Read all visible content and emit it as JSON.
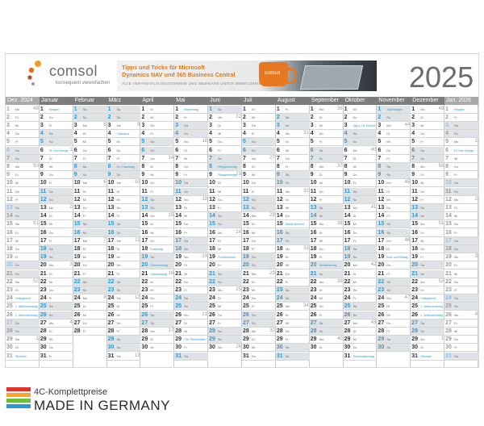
{
  "banner": {
    "logo_word": "comsol",
    "logo_tag": "konsequent vereinfachen",
    "ad_line1": "Tipps und Tricks für Microsoft",
    "ad_line2": "Dynamics NAV und 365 Business Central",
    "ad_line3": "ALLE VERANSTALTUNGSTERMINE UND WEBINARE UNTER WWW.COMSOL.AG",
    "mug_text": "comsol",
    "year": "2025"
  },
  "colors": {
    "accent": "#2a9ad6",
    "header": "#7c7c7c",
    "weekend": "#dfe3e6",
    "brand_orange": "#e27b1c"
  },
  "months": [
    {
      "name": "Dez. 2024",
      "first_weekday": 0,
      "days": 31,
      "kw_start": 49
    },
    {
      "name": "Januar",
      "first_weekday": 2,
      "days": 31,
      "kw_start": 1
    },
    {
      "name": "Februar",
      "first_weekday": 5,
      "days": 28,
      "kw_start": 5
    },
    {
      "name": "März",
      "first_weekday": 5,
      "days": 31,
      "kw_start": 9
    },
    {
      "name": "April",
      "first_weekday": 1,
      "days": 30,
      "kw_start": 14
    },
    {
      "name": "Mai",
      "first_weekday": 3,
      "days": 31,
      "kw_start": 18
    },
    {
      "name": "Juni",
      "first_weekday": 6,
      "days": 30,
      "kw_start": 22
    },
    {
      "name": "Juli",
      "first_weekday": 1,
      "days": 31,
      "kw_start": 27
    },
    {
      "name": "August",
      "first_weekday": 4,
      "days": 31,
      "kw_start": 31
    },
    {
      "name": "September",
      "first_weekday": 0,
      "days": 30,
      "kw_start": 36
    },
    {
      "name": "Oktober",
      "first_weekday": 2,
      "days": 31,
      "kw_start": 40
    },
    {
      "name": "November",
      "first_weekday": 5,
      "days": 30,
      "kw_start": 44
    },
    {
      "name": "Dezember",
      "first_weekday": 0,
      "days": 31,
      "kw_start": 49
    },
    {
      "name": "Jan. 2026",
      "first_weekday": 3,
      "days": 31,
      "kw_start": 1
    }
  ],
  "weekday_abbr": [
    "Mo",
    "Di",
    "Mi",
    "Do",
    "Fr",
    "Sa",
    "So"
  ],
  "holidays": {
    "1-1": "Neujahr",
    "1-6": "Hl. Drei Könige",
    "3-4": "Fastnacht",
    "3-8": "Int. Frauentag",
    "4-18": "Karfreitag",
    "4-20": "Ostersonntag",
    "4-21": "Ostermontag",
    "5-1": "Maifeiertag",
    "5-29": "Chr. Himmelfahrt",
    "6-8": "Pfingstsonntag",
    "6-9": "Pfingstmontag",
    "6-19": "Fronleichnam",
    "8-15": "Mariä Himmelf.",
    "9-20": "Weltkindertag",
    "10-3": "Tag d. Dt. Einheit",
    "10-31": "Reformationstag",
    "11-1": "Allerheiligen",
    "11-19": "Buß- und Bettag",
    "12-24": "Heiligabend",
    "12-25": "1. Weihnachtstag",
    "12-26": "2. Weihnachtstag",
    "12-31": "Silvester",
    "0-24": "Heiligabend",
    "0-25": "1. Weihnachtstag",
    "0-26": "2. Weihnachtstag",
    "0-31": "Silvester",
    "13-1": "Neujahr",
    "13-6": "Hl. Drei Könige"
  },
  "footer": {
    "line1": "4C-Komplettpreise",
    "line2": "MADE IN GERMANY",
    "stripe_colors": [
      "#e2302b",
      "#f5a623",
      "#6cbf3a",
      "#2a9ad6"
    ]
  }
}
